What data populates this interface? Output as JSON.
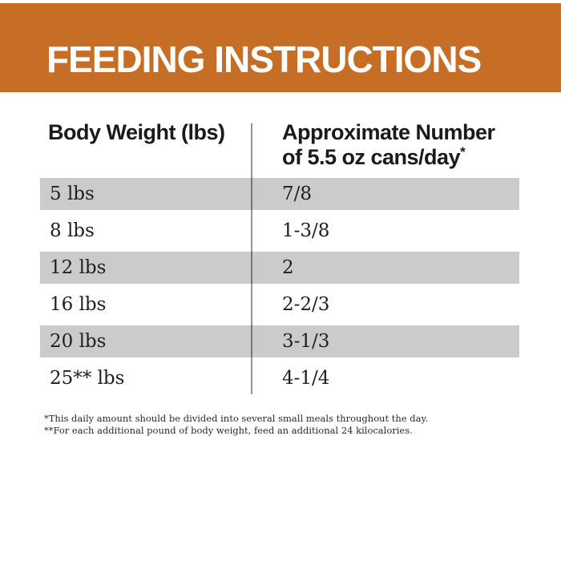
{
  "banner": {
    "title": "FEEDING INSTRUCTIONS",
    "bg_color": "#C76E26",
    "text_color": "#FFFFFF"
  },
  "table": {
    "header": {
      "col1": "Body Weight (lbs)",
      "col2_line1": "Approximate Number",
      "col2_line2": "of 5.5 oz cans/day",
      "col2_superscript": "*"
    },
    "shaded_row_color": "#CBCBCB",
    "rows": [
      {
        "weight": "5 lbs",
        "cans": "7/8"
      },
      {
        "weight": "8 lbs",
        "cans": "1-3/8"
      },
      {
        "weight": "12 lbs",
        "cans": "2"
      },
      {
        "weight": "16 lbs",
        "cans": "2-2/3"
      },
      {
        "weight": "20 lbs",
        "cans": "3-1/3"
      },
      {
        "weight": "25** lbs",
        "cans": "4-1/4"
      }
    ]
  },
  "footnotes": [
    "*This daily amount should be divided into several small meals throughout the day.",
    "**For each additional pound of body weight, feed an additional 24 kilocalories."
  ]
}
